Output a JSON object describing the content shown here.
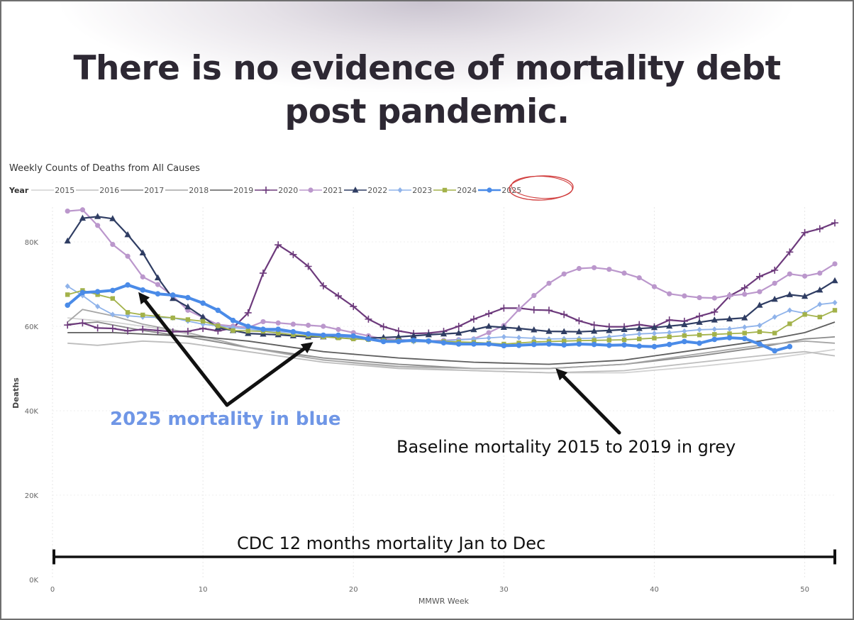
{
  "headline": [
    "There is no evidence of mortality debt",
    "post pandemic."
  ],
  "chart_data": {
    "type": "line",
    "title": "Weekly Counts of Deaths from All Causes",
    "legend_title": "Year",
    "xlabel": "MMWR Week",
    "ylabel": "Deaths",
    "xlim": [
      0,
      52
    ],
    "ylim": [
      0,
      88000
    ],
    "x_ticks": [
      0,
      10,
      20,
      30,
      40,
      50
    ],
    "y_ticks": [
      0,
      20000,
      40000,
      60000,
      80000
    ],
    "y_tick_labels": [
      "0K",
      "20K",
      "40K",
      "60K",
      "80K"
    ],
    "series": [
      {
        "name": "2015",
        "color": "#d2d2d2",
        "width": 1.8,
        "marker": "none",
        "weeks": [
          1,
          52
        ],
        "anchors": [
          [
            1,
            62000
          ],
          [
            4,
            61000
          ],
          [
            8,
            59000
          ],
          [
            12,
            55500
          ],
          [
            17,
            52500
          ],
          [
            22,
            50500
          ],
          [
            28,
            49500
          ],
          [
            33,
            49000
          ],
          [
            38,
            49000
          ],
          [
            43,
            50500
          ],
          [
            47,
            52000
          ],
          [
            50,
            53500
          ],
          [
            52,
            54500
          ]
        ]
      },
      {
        "name": "2016",
        "color": "#bdbdbd",
        "width": 1.8,
        "marker": "none",
        "weeks": [
          1,
          52
        ],
        "anchors": [
          [
            1,
            56000
          ],
          [
            3,
            55500
          ],
          [
            6,
            56500
          ],
          [
            9,
            56000
          ],
          [
            13,
            54000
          ],
          [
            18,
            51500
          ],
          [
            23,
            50000
          ],
          [
            28,
            49500
          ],
          [
            33,
            49000
          ],
          [
            38,
            49500
          ],
          [
            43,
            51500
          ],
          [
            47,
            53000
          ],
          [
            50,
            54000
          ],
          [
            52,
            53000
          ]
        ]
      },
      {
        "name": "2017",
        "color": "#8a8a8a",
        "width": 1.8,
        "marker": "none",
        "weeks": [
          1,
          52
        ],
        "anchors": [
          [
            1,
            60500
          ],
          [
            3,
            61000
          ],
          [
            6,
            59000
          ],
          [
            9,
            57500
          ],
          [
            13,
            55000
          ],
          [
            18,
            52500
          ],
          [
            23,
            51000
          ],
          [
            28,
            50000
          ],
          [
            33,
            50000
          ],
          [
            38,
            51000
          ],
          [
            43,
            53000
          ],
          [
            47,
            55000
          ],
          [
            50,
            57000
          ],
          [
            52,
            57500
          ]
        ]
      },
      {
        "name": "2018",
        "color": "#a6a6a6",
        "width": 1.8,
        "marker": "none",
        "weeks": [
          1,
          52
        ],
        "anchors": [
          [
            1,
            61000
          ],
          [
            2,
            64000
          ],
          [
            4,
            62500
          ],
          [
            6,
            60500
          ],
          [
            9,
            58500
          ],
          [
            13,
            55000
          ],
          [
            18,
            52000
          ],
          [
            23,
            50500
          ],
          [
            28,
            50000
          ],
          [
            33,
            50000
          ],
          [
            38,
            51000
          ],
          [
            43,
            53500
          ],
          [
            47,
            55500
          ],
          [
            50,
            56500
          ],
          [
            52,
            56000
          ]
        ]
      },
      {
        "name": "2019",
        "color": "#5e5e5e",
        "width": 1.8,
        "marker": "none",
        "weeks": [
          1,
          52
        ],
        "anchors": [
          [
            1,
            58500
          ],
          [
            4,
            58500
          ],
          [
            7,
            58000
          ],
          [
            10,
            57500
          ],
          [
            13,
            56500
          ],
          [
            18,
            54000
          ],
          [
            23,
            52500
          ],
          [
            28,
            51500
          ],
          [
            33,
            51000
          ],
          [
            38,
            52000
          ],
          [
            43,
            54500
          ],
          [
            47,
            56500
          ],
          [
            50,
            58500
          ],
          [
            52,
            61000
          ]
        ]
      },
      {
        "name": "2020",
        "color": "#6d3a7c",
        "width": 2.2,
        "marker": "plus",
        "values": [
          60300,
          60800,
          59600,
          59500,
          58900,
          59300,
          59000,
          58700,
          58800,
          59500,
          58900,
          59600,
          63200,
          72600,
          79300,
          77000,
          74200,
          69600,
          67200,
          64700,
          61700,
          59900,
          58900,
          58300,
          58400,
          58800,
          60000,
          61700,
          63000,
          64300,
          64300,
          63900,
          63800,
          62800,
          61300,
          60300,
          59900,
          59900,
          60400,
          59900,
          61500,
          61200,
          62400,
          63400,
          67200,
          69100,
          71800,
          73300,
          77600,
          82200,
          83100,
          84500
        ]
      },
      {
        "name": "2021",
        "color": "#bb97cc",
        "width": 2.2,
        "marker": "circle",
        "weeks": [
          1,
          52
        ],
        "anchors": [
          [
            1,
            87300
          ],
          [
            2,
            87600
          ],
          [
            3,
            83900
          ],
          [
            4,
            79400
          ],
          [
            5,
            76600
          ],
          [
            6,
            71700
          ],
          [
            7,
            69900
          ],
          [
            8,
            67200
          ],
          [
            9,
            63800
          ],
          [
            11,
            60400
          ],
          [
            13,
            59700
          ],
          [
            14,
            61100
          ],
          [
            16,
            60500
          ],
          [
            18,
            60000
          ],
          [
            20,
            58500
          ],
          [
            22,
            57000
          ],
          [
            25,
            56500
          ],
          [
            28,
            57000
          ],
          [
            29,
            58500
          ],
          [
            30,
            60200
          ],
          [
            31,
            64000
          ],
          [
            32,
            67300
          ],
          [
            33,
            70200
          ],
          [
            34,
            72400
          ],
          [
            35,
            73700
          ],
          [
            36,
            73900
          ],
          [
            37,
            73500
          ],
          [
            38,
            72600
          ],
          [
            39,
            71500
          ],
          [
            40,
            69400
          ],
          [
            41,
            67700
          ],
          [
            42,
            67200
          ],
          [
            43,
            66800
          ],
          [
            44,
            66700
          ],
          [
            45,
            67300
          ],
          [
            46,
            67600
          ],
          [
            47,
            68200
          ],
          [
            48,
            70200
          ],
          [
            49,
            72400
          ],
          [
            50,
            71900
          ],
          [
            51,
            72600
          ],
          [
            52,
            74800
          ]
        ]
      },
      {
        "name": "2022",
        "color": "#2f3d63",
        "width": 2.2,
        "marker": "triangle",
        "weeks": [
          1,
          52
        ],
        "anchors": [
          [
            1,
            80200
          ],
          [
            2,
            85600
          ],
          [
            3,
            86000
          ],
          [
            4,
            85500
          ],
          [
            5,
            81700
          ],
          [
            6,
            77400
          ],
          [
            7,
            71500
          ],
          [
            8,
            66600
          ],
          [
            9,
            64600
          ],
          [
            10,
            62200
          ],
          [
            11,
            59700
          ],
          [
            12,
            59000
          ],
          [
            13,
            58300
          ],
          [
            15,
            58000
          ],
          [
            17,
            57500
          ],
          [
            19,
            57500
          ],
          [
            21,
            57200
          ],
          [
            23,
            57500
          ],
          [
            25,
            58000
          ],
          [
            27,
            58400
          ],
          [
            29,
            60000
          ],
          [
            31,
            59500
          ],
          [
            33,
            58800
          ],
          [
            35,
            58700
          ],
          [
            37,
            59000
          ],
          [
            40,
            59700
          ],
          [
            42,
            60400
          ],
          [
            44,
            61500
          ],
          [
            46,
            62000
          ],
          [
            47,
            65000
          ],
          [
            48,
            66400
          ],
          [
            49,
            67500
          ],
          [
            50,
            67100
          ],
          [
            51,
            68600
          ],
          [
            52,
            70800
          ]
        ]
      },
      {
        "name": "2023",
        "color": "#8fb3ea",
        "width": 1.8,
        "marker": "diamond",
        "weeks": [
          1,
          52
        ],
        "anchors": [
          [
            1,
            69500
          ],
          [
            2,
            67300
          ],
          [
            3,
            64700
          ],
          [
            4,
            62800
          ],
          [
            6,
            62200
          ],
          [
            8,
            62000
          ],
          [
            10,
            60500
          ],
          [
            12,
            59700
          ],
          [
            14,
            59000
          ],
          [
            17,
            58200
          ],
          [
            20,
            57300
          ],
          [
            22,
            56500
          ],
          [
            25,
            56300
          ],
          [
            28,
            57000
          ],
          [
            30,
            57500
          ],
          [
            33,
            57000
          ],
          [
            36,
            57200
          ],
          [
            39,
            58200
          ],
          [
            41,
            58500
          ],
          [
            43,
            59200
          ],
          [
            45,
            59400
          ],
          [
            46,
            59800
          ],
          [
            47,
            60200
          ],
          [
            48,
            62200
          ],
          [
            49,
            63800
          ],
          [
            50,
            63100
          ],
          [
            51,
            65200
          ],
          [
            52,
            65600
          ]
        ]
      },
      {
        "name": "2024",
        "color": "#a3b24a",
        "width": 1.8,
        "marker": "square",
        "weeks": [
          1,
          52
        ],
        "anchors": [
          [
            1,
            67500
          ],
          [
            2,
            68500
          ],
          [
            3,
            67500
          ],
          [
            4,
            66600
          ],
          [
            5,
            63300
          ],
          [
            6,
            62700
          ],
          [
            8,
            62000
          ],
          [
            10,
            61200
          ],
          [
            12,
            59000
          ],
          [
            14,
            58800
          ],
          [
            16,
            58000
          ],
          [
            18,
            57500
          ],
          [
            20,
            57000
          ],
          [
            22,
            56700
          ],
          [
            25,
            56500
          ],
          [
            28,
            56200
          ],
          [
            30,
            55800
          ],
          [
            32,
            56300
          ],
          [
            35,
            56600
          ],
          [
            38,
            56800
          ],
          [
            40,
            57200
          ],
          [
            42,
            57800
          ],
          [
            44,
            58100
          ],
          [
            46,
            58400
          ],
          [
            47,
            58700
          ],
          [
            48,
            58400
          ],
          [
            49,
            60600
          ],
          [
            50,
            62800
          ],
          [
            51,
            62200
          ],
          [
            52,
            63800
          ]
        ]
      },
      {
        "name": "2025",
        "color": "#4a8be8",
        "width": 4,
        "marker": "circle",
        "weeks": [
          1,
          49
        ],
        "anchors": [
          [
            1,
            65000
          ],
          [
            2,
            68000
          ],
          [
            3,
            68200
          ],
          [
            4,
            68500
          ],
          [
            5,
            69800
          ],
          [
            6,
            68600
          ],
          [
            7,
            67700
          ],
          [
            8,
            67400
          ],
          [
            9,
            66800
          ],
          [
            10,
            65500
          ],
          [
            11,
            63800
          ],
          [
            12,
            61400
          ],
          [
            13,
            60000
          ],
          [
            14,
            59300
          ],
          [
            15,
            59300
          ],
          [
            16,
            58700
          ],
          [
            17,
            58200
          ],
          [
            18,
            57900
          ],
          [
            19,
            57900
          ],
          [
            20,
            57700
          ],
          [
            21,
            57000
          ],
          [
            22,
            56400
          ],
          [
            23,
            56400
          ],
          [
            24,
            56700
          ],
          [
            25,
            56500
          ],
          [
            26,
            56100
          ],
          [
            27,
            55800
          ],
          [
            28,
            55800
          ],
          [
            29,
            55800
          ],
          [
            30,
            55400
          ],
          [
            31,
            55500
          ],
          [
            32,
            55700
          ],
          [
            33,
            55800
          ],
          [
            34,
            55600
          ],
          [
            35,
            55800
          ],
          [
            36,
            55700
          ],
          [
            37,
            55500
          ],
          [
            38,
            55600
          ],
          [
            39,
            55300
          ],
          [
            40,
            55200
          ],
          [
            41,
            55700
          ],
          [
            42,
            56400
          ],
          [
            43,
            56000
          ],
          [
            44,
            56900
          ],
          [
            45,
            57300
          ],
          [
            46,
            57100
          ],
          [
            47,
            55800
          ],
          [
            48,
            54200
          ],
          [
            49,
            55200
          ]
        ]
      }
    ],
    "annotations": {
      "blue_label": "2025 mortality in blue",
      "grey_label": "Baseline mortality 2015 to 2019 in grey",
      "span_label": "CDC 12 months mortality Jan to Dec"
    }
  }
}
